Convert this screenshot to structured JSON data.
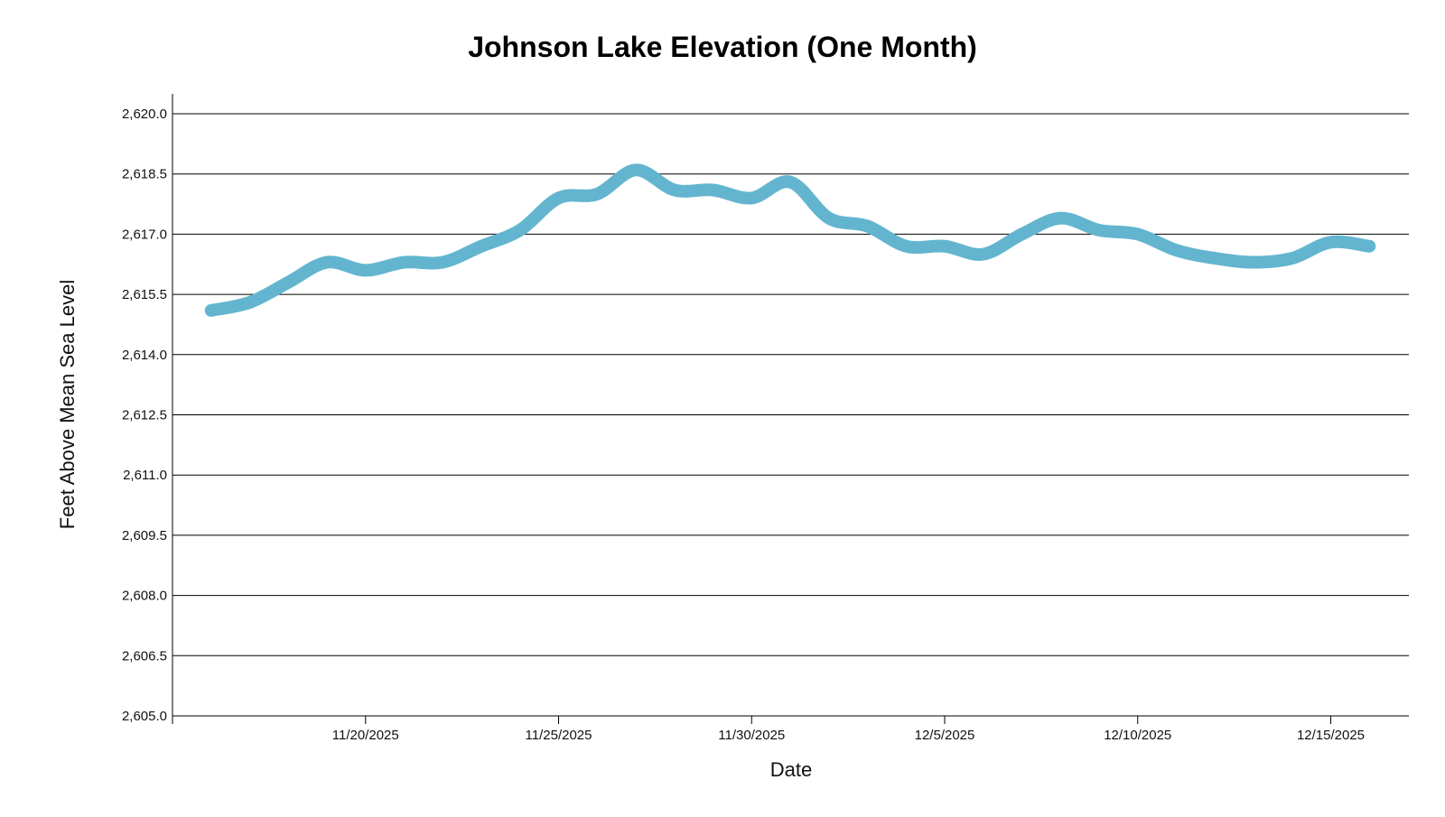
{
  "chart_data": {
    "type": "line",
    "title": "Johnson Lake Elevation (One Month)",
    "xlabel": "Date",
    "ylabel": "Feet Above Mean Sea Level",
    "x_range_days": [
      0,
      32
    ],
    "ylim": [
      2605.0,
      2620.5
    ],
    "y_ticks": [
      2605.0,
      2606.5,
      2608.0,
      2609.5,
      2611.0,
      2612.5,
      2614.0,
      2615.5,
      2617.0,
      2618.5,
      2620.0
    ],
    "y_tick_labels": [
      "2,605.0",
      "2,606.5",
      "2,608.0",
      "2,609.5",
      "2,611.0",
      "2,612.5",
      "2,614.0",
      "2,615.5",
      "2,617.0",
      "2,618.5",
      "2,620.0"
    ],
    "x_ticks": [
      {
        "day": 5,
        "label": "11/20/2025"
      },
      {
        "day": 10,
        "label": "11/25/2025"
      },
      {
        "day": 15,
        "label": "11/30/2025"
      },
      {
        "day": 20,
        "label": "12/5/2025"
      },
      {
        "day": 25,
        "label": "12/10/2025"
      },
      {
        "day": 30,
        "label": "12/15/2025"
      }
    ],
    "grid": true,
    "legend": "none",
    "line_color": "#63b5cf",
    "series": [
      {
        "name": "Johnson Lake Elevation",
        "points": [
          {
            "date": "11/16/2025",
            "day": 1.0,
            "value": 2615.1
          },
          {
            "date": "11/17/2025",
            "day": 2.0,
            "value": 2615.3
          },
          {
            "date": "11/18/2025",
            "day": 3.0,
            "value": 2615.8
          },
          {
            "date": "11/19/2025",
            "day": 4.0,
            "value": 2616.3
          },
          {
            "date": "11/20/2025",
            "day": 5.0,
            "value": 2616.1
          },
          {
            "date": "11/21/2025",
            "day": 6.0,
            "value": 2616.3
          },
          {
            "date": "11/22/2025",
            "day": 7.0,
            "value": 2616.3
          },
          {
            "date": "11/23/2025",
            "day": 8.0,
            "value": 2616.7
          },
          {
            "date": "11/24/2025",
            "day": 9.0,
            "value": 2617.1
          },
          {
            "date": "11/25/2025",
            "day": 10.0,
            "value": 2617.9
          },
          {
            "date": "11/26/2025",
            "day": 11.0,
            "value": 2618.0
          },
          {
            "date": "11/27/2025",
            "day": 12.0,
            "value": 2618.6
          },
          {
            "date": "11/28/2025",
            "day": 13.0,
            "value": 2618.1
          },
          {
            "date": "11/29/2025",
            "day": 14.0,
            "value": 2618.1
          },
          {
            "date": "11/30/2025",
            "day": 15.0,
            "value": 2617.9
          },
          {
            "date": "12/1/2025",
            "day": 16.0,
            "value": 2618.3
          },
          {
            "date": "12/2/2025",
            "day": 17.0,
            "value": 2617.4
          },
          {
            "date": "12/3/2025",
            "day": 18.0,
            "value": 2617.2
          },
          {
            "date": "12/4/2025",
            "day": 19.0,
            "value": 2616.7
          },
          {
            "date": "12/5/2025",
            "day": 20.0,
            "value": 2616.7
          },
          {
            "date": "12/6/2025",
            "day": 21.0,
            "value": 2616.5
          },
          {
            "date": "12/7/2025",
            "day": 22.0,
            "value": 2617.0
          },
          {
            "date": "12/8/2025",
            "day": 23.0,
            "value": 2617.4
          },
          {
            "date": "12/9/2025",
            "day": 24.0,
            "value": 2617.1
          },
          {
            "date": "12/10/2025",
            "day": 25.0,
            "value": 2617.0
          },
          {
            "date": "12/11/2025",
            "day": 26.0,
            "value": 2616.6
          },
          {
            "date": "12/12/2025",
            "day": 27.0,
            "value": 2616.4
          },
          {
            "date": "12/13/2025",
            "day": 28.0,
            "value": 2616.3
          },
          {
            "date": "12/14/2025",
            "day": 29.0,
            "value": 2616.4
          },
          {
            "date": "12/15/2025",
            "day": 30.0,
            "value": 2616.8
          },
          {
            "date": "12/16/2025",
            "day": 31.0,
            "value": 2616.7
          }
        ]
      }
    ]
  }
}
